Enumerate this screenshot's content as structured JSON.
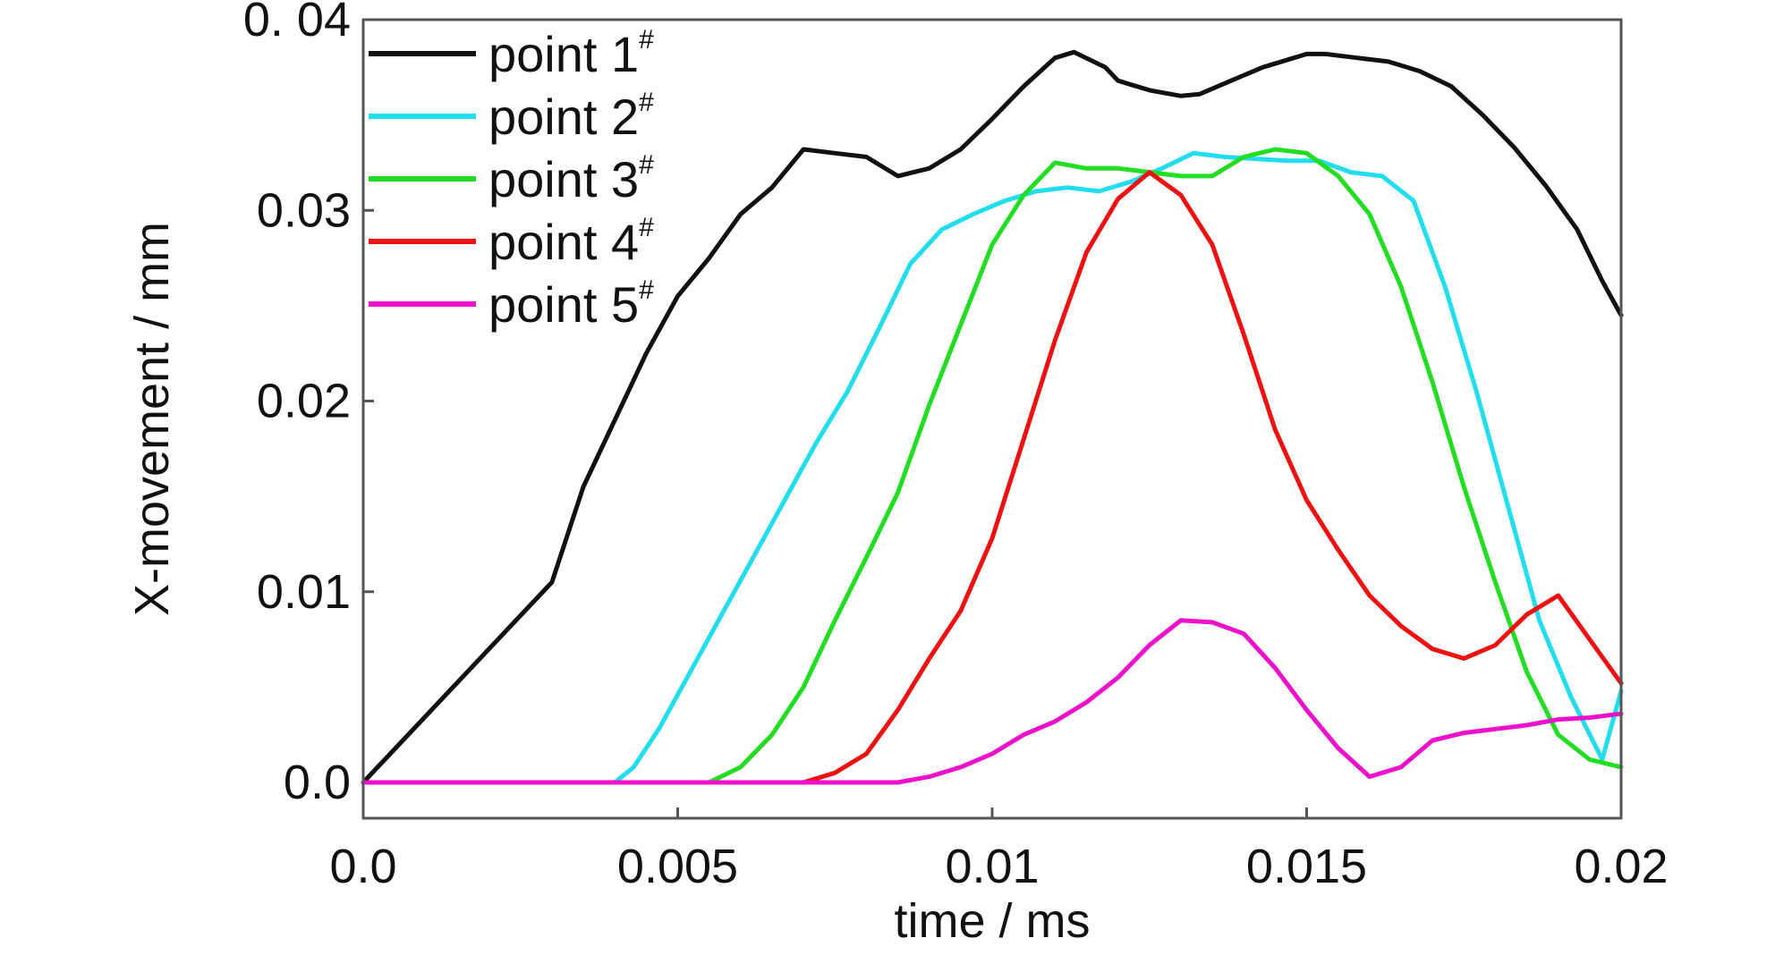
{
  "chart_data": {
    "type": "line",
    "title": "",
    "xlabel": "time / ms",
    "ylabel": "X-movement / mm",
    "xlim": [
      0,
      0.02
    ],
    "ylim": [
      -0.002,
      0.04
    ],
    "x_ticks": [
      0,
      0.005,
      0.01,
      0.015,
      0.02
    ],
    "x_tick_labels": [
      "0.0",
      "0.005",
      "0.01",
      "0.015",
      "0.02"
    ],
    "y_ticks": [
      0,
      0.01,
      0.02,
      0.03,
      0.04
    ],
    "y_tick_labels": [
      "0.0",
      "0.01",
      "0.02",
      "0.03",
      "0. 04"
    ],
    "grid": false,
    "legend_position": "top-left",
    "series": [
      {
        "name": "point 1",
        "name_sup": "#",
        "color": "#111111",
        "x": [
          0,
          0.001,
          0.002,
          0.003,
          0.0035,
          0.004,
          0.0045,
          0.005,
          0.0055,
          0.006,
          0.0065,
          0.007,
          0.0075,
          0.008,
          0.0085,
          0.009,
          0.0095,
          0.01,
          0.0105,
          0.011,
          0.0113,
          0.0118,
          0.012,
          0.0125,
          0.013,
          0.0133,
          0.0138,
          0.0143,
          0.0148,
          0.015,
          0.0153,
          0.0158,
          0.0163,
          0.0168,
          0.0173,
          0.0178,
          0.0183,
          0.0188,
          0.0193,
          0.0197,
          0.02
        ],
        "y": [
          0,
          0.0035,
          0.007,
          0.0105,
          0.0155,
          0.019,
          0.0225,
          0.0255,
          0.0275,
          0.0298,
          0.0312,
          0.0332,
          0.033,
          0.0328,
          0.0318,
          0.0322,
          0.0332,
          0.0348,
          0.0365,
          0.038,
          0.0383,
          0.0375,
          0.0368,
          0.0363,
          0.036,
          0.0361,
          0.0368,
          0.0375,
          0.038,
          0.0382,
          0.0382,
          0.038,
          0.0378,
          0.0373,
          0.0365,
          0.035,
          0.0333,
          0.0313,
          0.029,
          0.0263,
          0.0245
        ]
      },
      {
        "name": "point 2",
        "name_sup": "#",
        "color": "#22ddee",
        "x": [
          0,
          0.004,
          0.0043,
          0.0047,
          0.0052,
          0.0057,
          0.0062,
          0.0067,
          0.0072,
          0.0077,
          0.0082,
          0.0087,
          0.0092,
          0.0097,
          0.0102,
          0.0107,
          0.0112,
          0.0117,
          0.0122,
          0.0127,
          0.0132,
          0.0137,
          0.0142,
          0.0147,
          0.0152,
          0.0157,
          0.0162,
          0.0167,
          0.0172,
          0.0177,
          0.0182,
          0.0187,
          0.0192,
          0.0197,
          0.02
        ],
        "y": [
          0,
          0,
          0.0008,
          0.0028,
          0.0058,
          0.0088,
          0.0118,
          0.0148,
          0.0178,
          0.0205,
          0.0238,
          0.0272,
          0.029,
          0.0298,
          0.0305,
          0.031,
          0.0312,
          0.031,
          0.0315,
          0.0322,
          0.033,
          0.0328,
          0.0327,
          0.0326,
          0.0326,
          0.032,
          0.0318,
          0.0305,
          0.026,
          0.0205,
          0.0145,
          0.0085,
          0.0045,
          0.0012,
          0.0048
        ]
      },
      {
        "name": "point 3",
        "name_sup": "#",
        "color": "#22dd22",
        "x": [
          0,
          0.0055,
          0.006,
          0.0065,
          0.007,
          0.0075,
          0.008,
          0.0085,
          0.009,
          0.0095,
          0.01,
          0.0105,
          0.011,
          0.0115,
          0.012,
          0.0125,
          0.013,
          0.0135,
          0.014,
          0.0145,
          0.015,
          0.0155,
          0.016,
          0.0165,
          0.017,
          0.0175,
          0.018,
          0.0185,
          0.019,
          0.0195,
          0.02
        ],
        "y": [
          0,
          0,
          0.0008,
          0.0025,
          0.005,
          0.0085,
          0.0118,
          0.0152,
          0.0198,
          0.024,
          0.0282,
          0.0308,
          0.0325,
          0.0322,
          0.0322,
          0.032,
          0.0318,
          0.0318,
          0.0328,
          0.0332,
          0.033,
          0.0318,
          0.0298,
          0.026,
          0.021,
          0.0155,
          0.0105,
          0.0058,
          0.0025,
          0.0012,
          0.0008
        ]
      },
      {
        "name": "point 4",
        "name_sup": "#",
        "color": "#ee1111",
        "x": [
          0,
          0.007,
          0.0075,
          0.008,
          0.0085,
          0.009,
          0.0095,
          0.01,
          0.0105,
          0.011,
          0.0115,
          0.012,
          0.0125,
          0.013,
          0.0135,
          0.014,
          0.0145,
          0.015,
          0.0155,
          0.016,
          0.0165,
          0.017,
          0.0175,
          0.018,
          0.0185,
          0.019,
          0.0195,
          0.02
        ],
        "y": [
          0,
          0,
          0.0005,
          0.0015,
          0.0038,
          0.0065,
          0.009,
          0.0128,
          0.018,
          0.0232,
          0.0278,
          0.0306,
          0.032,
          0.0308,
          0.0282,
          0.0235,
          0.0185,
          0.0148,
          0.0122,
          0.0098,
          0.0082,
          0.007,
          0.0065,
          0.0072,
          0.0088,
          0.0098,
          0.0075,
          0.0052
        ]
      },
      {
        "name": "point 5",
        "name_sup": "#",
        "color": "#ee11cc",
        "x": [
          0,
          0.0085,
          0.009,
          0.0095,
          0.01,
          0.0105,
          0.011,
          0.0115,
          0.012,
          0.0125,
          0.013,
          0.0135,
          0.014,
          0.0145,
          0.015,
          0.0155,
          0.016,
          0.0165,
          0.017,
          0.0175,
          0.018,
          0.0185,
          0.019,
          0.0195,
          0.02
        ],
        "y": [
          0,
          0,
          0.0003,
          0.0008,
          0.0015,
          0.0025,
          0.0032,
          0.0042,
          0.0055,
          0.0072,
          0.0085,
          0.0084,
          0.0078,
          0.006,
          0.0038,
          0.0018,
          0.0003,
          0.0008,
          0.0022,
          0.0026,
          0.0028,
          0.003,
          0.0033,
          0.0034,
          0.0036
        ]
      }
    ]
  }
}
